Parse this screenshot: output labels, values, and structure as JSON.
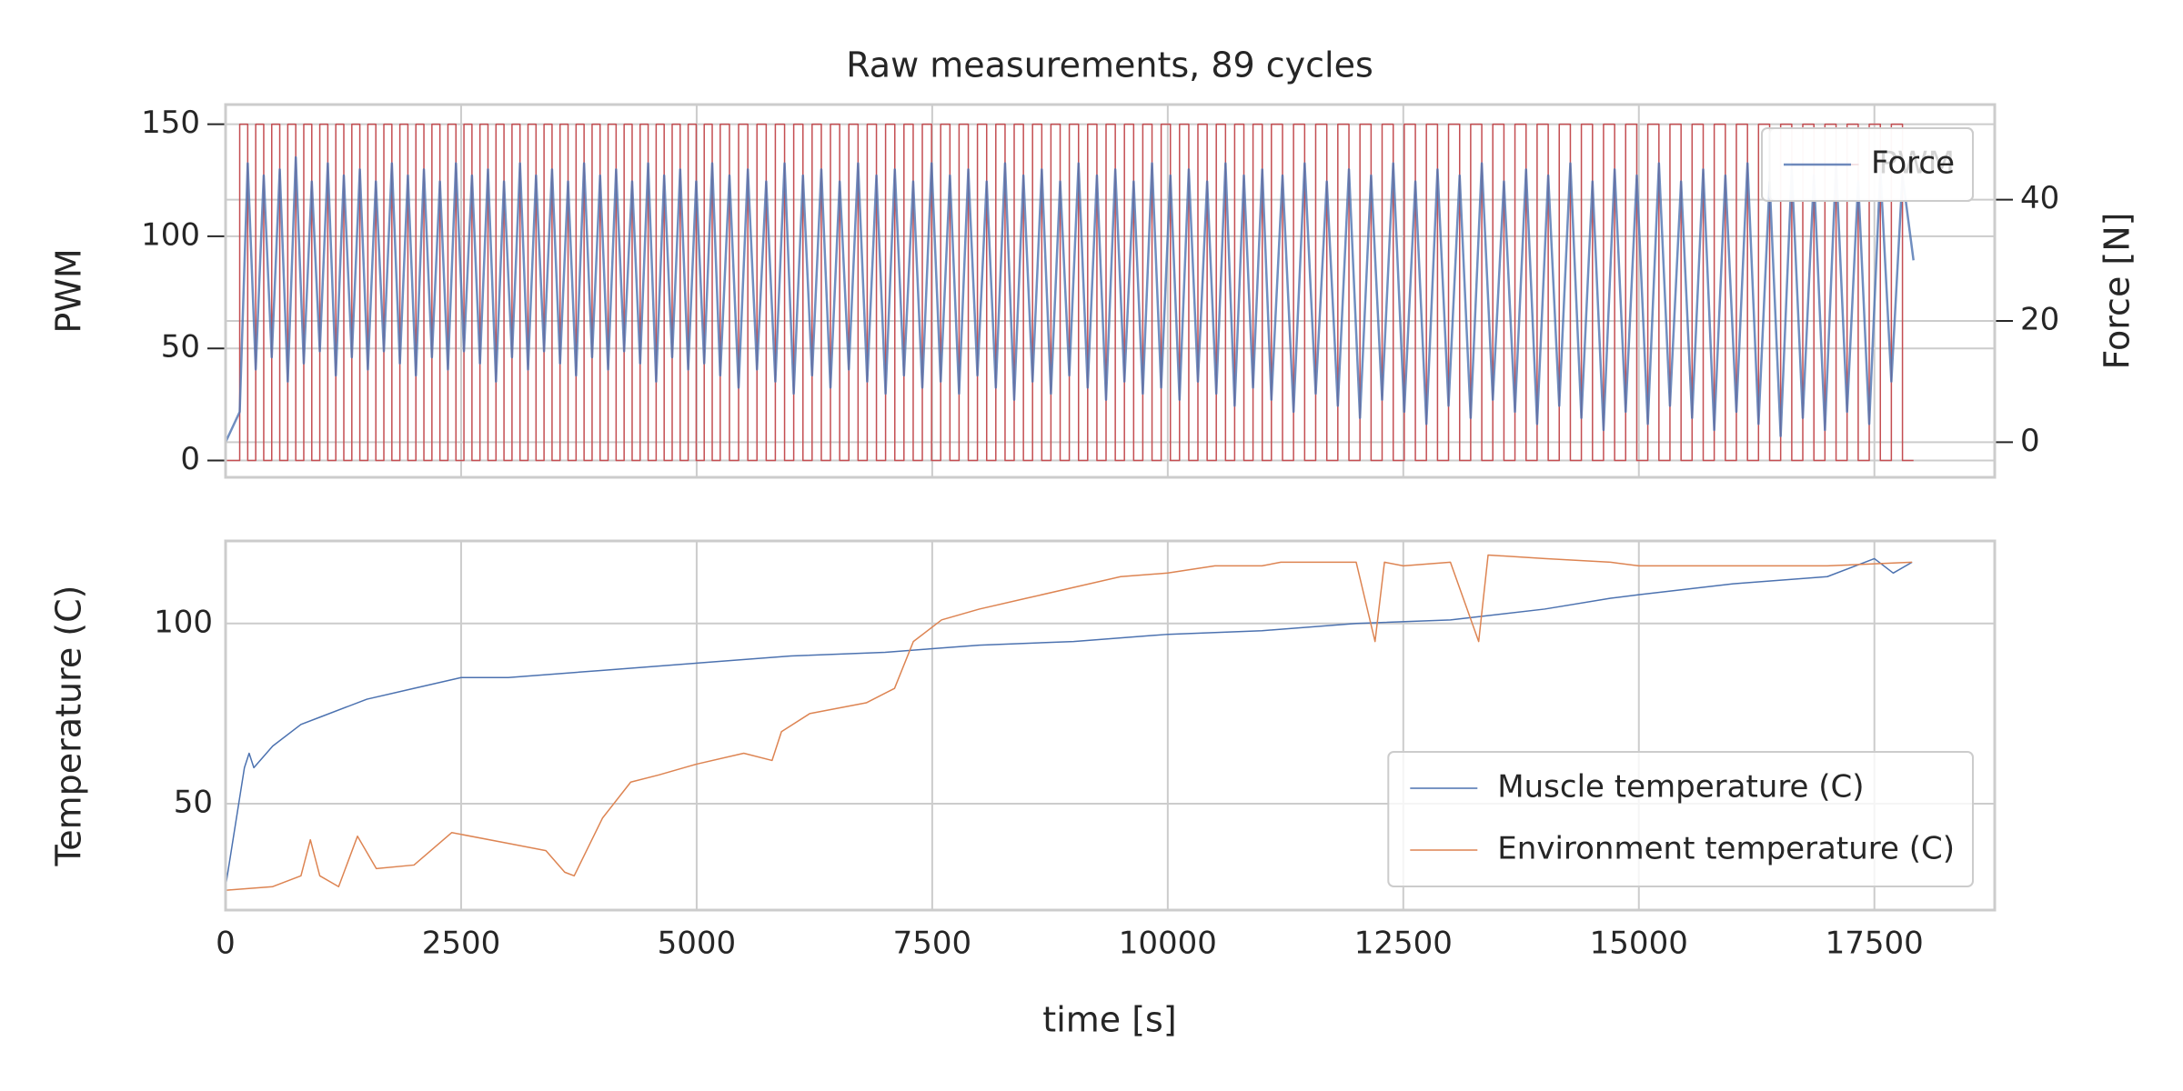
{
  "chart_data": [
    {
      "type": "line",
      "title": "Raw measurements, 89 cycles",
      "ylabel": "PWM",
      "y2label": "Force [N]",
      "xlim": [
        0,
        18777
      ],
      "xticks": [
        0,
        2500,
        5000,
        7500,
        10000,
        12500,
        15000,
        17500
      ],
      "show_xticklabels": false,
      "ylim": [
        -7.5,
        158.75
      ],
      "yticks": [
        0,
        50,
        100,
        150
      ],
      "y2lim": [
        -5.8,
        55.7
      ],
      "y2ticks": [
        0,
        20,
        40
      ],
      "grid": true,
      "tick_marks": true,
      "legend": "upper right",
      "x": [
        0,
        150,
        235,
        320,
        405,
        490,
        575,
        660,
        745,
        830,
        915,
        1000,
        1085,
        1170,
        1255,
        1340,
        1425,
        1510,
        1595,
        1680,
        1765,
        1850,
        1935,
        2020,
        2105,
        2190,
        2275,
        2360,
        2445,
        2530,
        2615,
        2700,
        2785,
        2870,
        2955,
        3040,
        3125,
        3210,
        3295,
        3380,
        3465,
        3550,
        3635,
        3720,
        3805,
        3890,
        3975,
        4060,
        4145,
        4230,
        4315,
        4400,
        4485,
        4570,
        4655,
        4740,
        4825,
        4910,
        4995,
        5080,
        5165,
        5250,
        5348,
        5445,
        5543,
        5640,
        5738,
        5835,
        5933,
        6030,
        6128,
        6225,
        6323,
        6420,
        6518,
        6615,
        6713,
        6810,
        6908,
        7005,
        7103,
        7200,
        7298,
        7395,
        7493,
        7590,
        7688,
        7785,
        7883,
        7980,
        8078,
        8175,
        8273,
        8370,
        8468,
        8565,
        8663,
        8760,
        8858,
        8955,
        9053,
        9150,
        9248,
        9345,
        9443,
        9540,
        9638,
        9735,
        9833,
        9930,
        10028,
        10125,
        10223,
        10320,
        10418,
        10515,
        10613,
        10710,
        10808,
        10905,
        11003,
        11100,
        11218,
        11335,
        11453,
        11570,
        11688,
        11805,
        11923,
        12040,
        12158,
        12275,
        12393,
        12510,
        12628,
        12745,
        12863,
        12980,
        13098,
        13215,
        13333,
        13450,
        13568,
        13685,
        13803,
        13920,
        14038,
        14155,
        14273,
        14390,
        14508,
        14625,
        14743,
        14860,
        14978,
        15095,
        15213,
        15330,
        15448,
        15565,
        15683,
        15800,
        15918,
        16035,
        16153,
        16270,
        16388,
        16505,
        16623,
        16740,
        16858,
        16975,
        17093,
        17210,
        17328,
        17445,
        17563,
        17680,
        17798,
        17915
      ],
      "series": [
        {
          "name": "PWM",
          "color": "#c44e52",
          "drawstyle": "steps-post",
          "width": 1.5,
          "opacity": 1,
          "values": [
            0,
            150,
            0,
            150,
            0,
            150,
            0,
            150,
            0,
            150,
            0,
            150,
            0,
            150,
            0,
            150,
            0,
            150,
            0,
            150,
            0,
            150,
            0,
            150,
            0,
            150,
            0,
            150,
            0,
            150,
            0,
            150,
            0,
            150,
            0,
            150,
            0,
            150,
            0,
            150,
            0,
            150,
            0,
            150,
            0,
            150,
            0,
            150,
            0,
            150,
            0,
            150,
            0,
            150,
            0,
            150,
            0,
            150,
            0,
            150,
            0,
            150,
            0,
            150,
            0,
            150,
            0,
            150,
            0,
            150,
            0,
            150,
            0,
            150,
            0,
            150,
            0,
            150,
            0,
            150,
            0,
            150,
            0,
            150,
            0,
            150,
            0,
            150,
            0,
            150,
            0,
            150,
            0,
            150,
            0,
            150,
            0,
            150,
            0,
            150,
            0,
            150,
            0,
            150,
            0,
            150,
            0,
            150,
            0,
            150,
            0,
            150,
            0,
            150,
            0,
            150,
            0,
            150,
            0,
            150,
            0,
            150,
            0,
            150,
            0,
            150,
            0,
            150,
            0,
            150,
            0,
            150,
            0,
            150,
            0,
            150,
            0,
            150,
            0,
            150,
            0,
            150,
            0,
            150,
            0,
            150,
            0,
            150,
            0,
            150,
            0,
            150,
            0,
            150,
            0,
            150,
            0,
            150,
            0,
            150,
            0,
            150,
            0,
            150,
            0,
            150,
            0,
            150,
            0,
            150,
            0,
            150,
            0,
            150,
            0,
            150,
            0,
            150,
            0,
            0
          ]
        },
        {
          "name": "Force",
          "color": "#4c72b0",
          "axis": "y2",
          "width": 2.5,
          "opacity": 0.8,
          "values": [
            0,
            5,
            46,
            12,
            44,
            14,
            45,
            10,
            47,
            13,
            43,
            15,
            46,
            11,
            44,
            14,
            45,
            12,
            43,
            15,
            46,
            13,
            44,
            11,
            45,
            14,
            43,
            12,
            46,
            15,
            44,
            13,
            45,
            10,
            43,
            14,
            46,
            12,
            44,
            15,
            45,
            13,
            43,
            11,
            46,
            14,
            44,
            12,
            45,
            15,
            43,
            13,
            46,
            10,
            44,
            14,
            45,
            12,
            43,
            13,
            46,
            11,
            44,
            9,
            45,
            12,
            43,
            10,
            46,
            8,
            44,
            11,
            45,
            9,
            43,
            12,
            46,
            10,
            44,
            8,
            45,
            11,
            43,
            9,
            46,
            10,
            44,
            8,
            45,
            11,
            43,
            9,
            46,
            7,
            44,
            10,
            45,
            8,
            43,
            11,
            46,
            9,
            44,
            7,
            45,
            10,
            43,
            8,
            46,
            9,
            44,
            7,
            45,
            10,
            43,
            8,
            46,
            6,
            44,
            9,
            45,
            7,
            44,
            5,
            46,
            8,
            43,
            6,
            45,
            4,
            44,
            7,
            46,
            5,
            43,
            3,
            45,
            6,
            44,
            4,
            46,
            7,
            43,
            5,
            45,
            3,
            44,
            6,
            46,
            4,
            43,
            2,
            45,
            5,
            44,
            3,
            46,
            6,
            43,
            4,
            45,
            2,
            44,
            5,
            46,
            3,
            43,
            1,
            45,
            4,
            44,
            2,
            46,
            5,
            43,
            3,
            45,
            10,
            44,
            30
          ]
        }
      ]
    },
    {
      "type": "line",
      "xlabel": "time [s]",
      "ylabel": "Temperature (C)",
      "xlim": [
        0,
        18777
      ],
      "xticks": [
        0,
        2500,
        5000,
        7500,
        10000,
        12500,
        15000,
        17500
      ],
      "show_xticklabels": true,
      "ylim": [
        20.5,
        122.9
      ],
      "yticks": [
        50,
        100
      ],
      "grid": true,
      "tick_marks": false,
      "legend": "lower right",
      "series": [
        {
          "name": "Muscle temperature (C)",
          "color": "#4c72b0",
          "width": 1.5,
          "opacity": 1,
          "x": [
            0,
            200,
            250,
            300,
            500,
            800,
            1000,
            1500,
            2000,
            2500,
            3000,
            4000,
            5000,
            6000,
            7000,
            7500,
            8000,
            9000,
            10000,
            11000,
            12000,
            13000,
            14000,
            14700,
            15000,
            16000,
            17000,
            17500,
            17700,
            17900
          ],
          "values": [
            27,
            60,
            64,
            60,
            66,
            72,
            74,
            79,
            82,
            85,
            85,
            87,
            89,
            91,
            92,
            93,
            94,
            95,
            97,
            98,
            100,
            101,
            104,
            107,
            108,
            111,
            113,
            118,
            114,
            117
          ]
        },
        {
          "name": "Environment temperature (C)",
          "color": "#dd8452",
          "width": 1.5,
          "opacity": 1,
          "x": [
            0,
            500,
            800,
            900,
            1000,
            1200,
            1400,
            1600,
            2000,
            2400,
            3000,
            3400,
            3600,
            3700,
            4000,
            4300,
            4600,
            5000,
            5500,
            5800,
            5900,
            6200,
            6800,
            7100,
            7300,
            7600,
            8000,
            8500,
            9000,
            9500,
            10000,
            10500,
            11000,
            11200,
            12000,
            12200,
            12300,
            12500,
            13000,
            13300,
            13400,
            14000,
            14700,
            15000,
            16000,
            17000,
            17900
          ],
          "values": [
            26,
            27,
            30,
            40,
            30,
            27,
            41,
            32,
            33,
            42,
            39,
            37,
            31,
            30,
            46,
            56,
            58,
            61,
            64,
            62,
            70,
            75,
            78,
            82,
            95,
            101,
            104,
            107,
            110,
            113,
            114,
            116,
            116,
            117,
            117,
            95,
            117,
            116,
            117,
            95,
            119,
            118,
            117,
            116,
            116,
            116,
            117
          ]
        }
      ]
    }
  ]
}
